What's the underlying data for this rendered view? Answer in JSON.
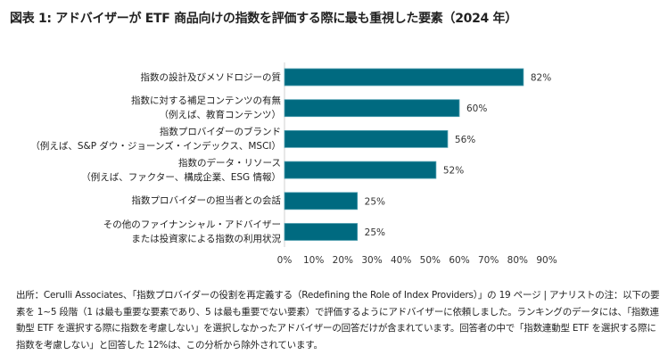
{
  "title": "図表 1: アドバイザーが ETF 商品向けの指数を評価する際に最も重視した要素（2024 年）",
  "chart_data": {
    "type": "bar",
    "orientation": "horizontal",
    "categories": [
      [
        "指数の設計及びメソドロジーの質"
      ],
      [
        "指数に対する補足コンテンツの有無",
        "（例えば、教育コンテンツ）"
      ],
      [
        "指数プロバイダーのブランド",
        "（例えば、S&P ダウ・ジョーンズ・インデックス、MSCI）"
      ],
      [
        "指数のデータ・リソース",
        "（例えば、ファクター、構成企業、ESG 情報）"
      ],
      [
        "指数プロバイダーの担当者との会話"
      ],
      [
        "その他のファイナンシャル・アドバイザー",
        "または投資家による指数の利用状況"
      ]
    ],
    "values": [
      82,
      60,
      56,
      52,
      25,
      25
    ],
    "data_labels": [
      "82%",
      "60%",
      "56%",
      "52%",
      "25%",
      "25%"
    ],
    "xlim": [
      0,
      90
    ],
    "xticks": [
      "0%",
      "10%",
      "20%",
      "30%",
      "40%",
      "50%",
      "60%",
      "70%",
      "80%",
      "90%"
    ],
    "bar_color": "#006a80",
    "grid": false
  },
  "footnote": "出所：Cerulli Associates、「指数プロバイダーの役割を再定義する（Redefining the Role of Index Providers）」の 19 ページ | アナリストの注：以下の要素を 1~5 段階（1 は最も重要な要素であり、5 は最も重要でない要素）で評価するようにアドバイザーに依頼しました。ランキングのデータには、「指数連動型 ETF を選択する際に指数を考慮しない」を選択しなかったアドバイザーの回答だけが含まれています。回答者の中で「指数連動型 ETF を選択する際に指数を考慮しない」と回答した 12%は、この分析から除外されています。"
}
